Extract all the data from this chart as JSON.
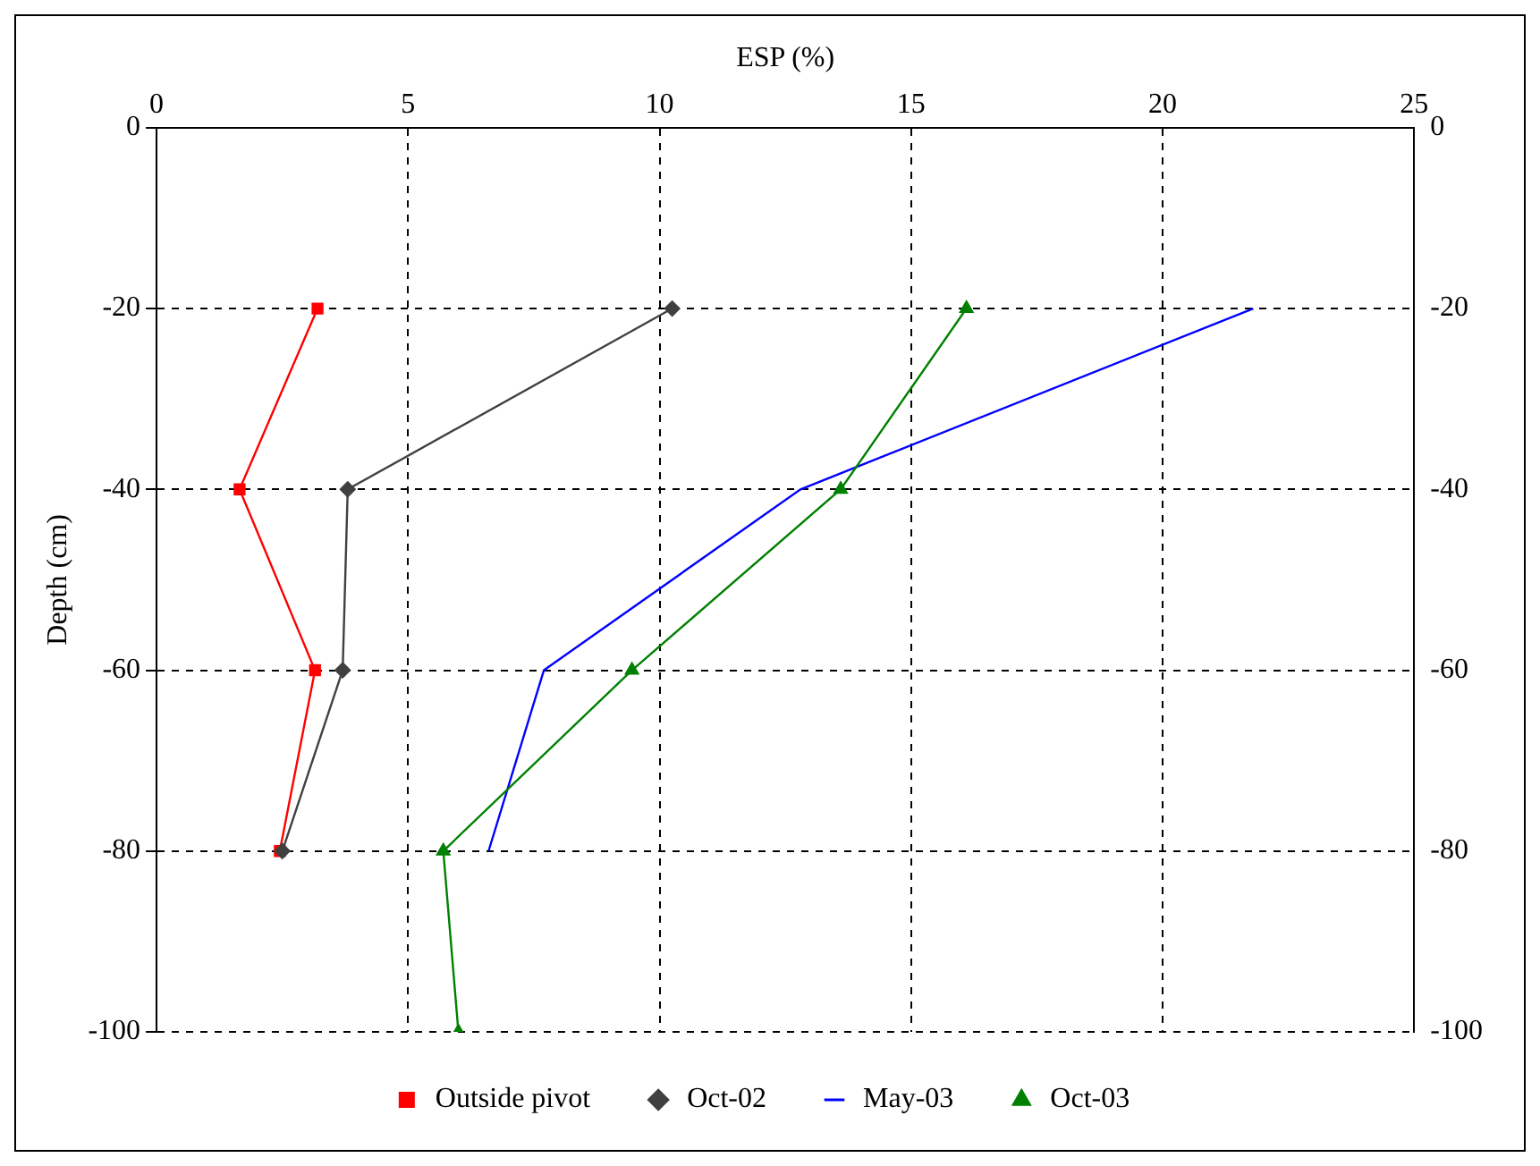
{
  "chart_data": {
    "type": "line",
    "xlabel": "ESP (%)",
    "ylabel": "Depth (cm)",
    "xlim": [
      0,
      25
    ],
    "xticks": [
      0,
      5,
      10,
      15,
      20,
      25
    ],
    "ylim": [
      -100,
      0
    ],
    "yticks": [
      0,
      -20,
      -40,
      -60,
      -80,
      -100
    ],
    "y2lim": [
      -100,
      0
    ],
    "y2ticks": [
      0,
      -20,
      -40,
      -60,
      -80,
      -100
    ],
    "grid": true,
    "legend": "bottom",
    "series": [
      {
        "name": "Outside pivot",
        "color": "#ff0000",
        "marker": "square",
        "x": [
          3.2,
          1.65,
          3.15,
          2.45
        ],
        "values": [
          -20,
          -40,
          -60,
          -80
        ]
      },
      {
        "name": "Oct-02",
        "color": "#404040",
        "marker": "diamond",
        "x": [
          10.25,
          3.8,
          3.7,
          2.5
        ],
        "values": [
          -20,
          -40,
          -60,
          -80
        ]
      },
      {
        "name": "May-03",
        "color": "#0000ff",
        "marker": "none",
        "x": [
          21.8,
          12.8,
          7.7,
          6.6
        ],
        "values": [
          -20,
          -40,
          -60,
          -80
        ]
      },
      {
        "name": "Oct-03",
        "color": "#008000",
        "marker": "triangle",
        "x": [
          16.1,
          13.6,
          9.45,
          5.7,
          6.0
        ],
        "values": [
          -20,
          -40,
          -60,
          -80,
          -100
        ]
      }
    ]
  }
}
